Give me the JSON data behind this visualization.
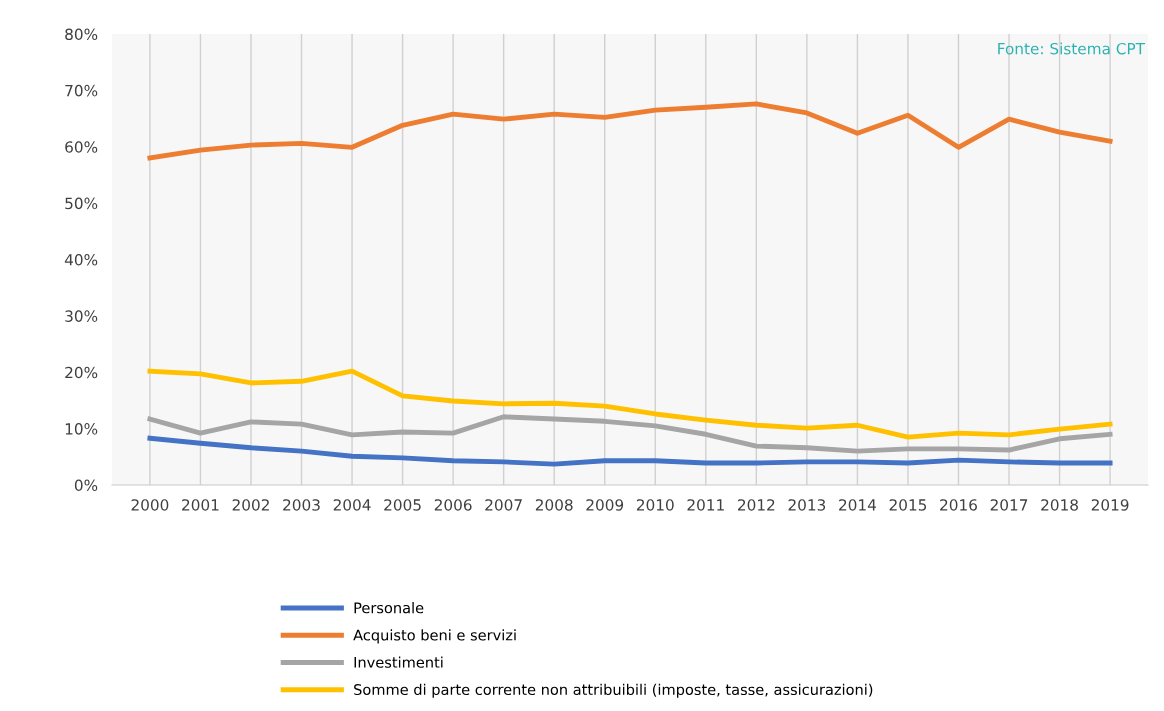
{
  "chart_data": {
    "type": "line",
    "categories": [
      "2000",
      "2001",
      "2002",
      "2003",
      "2004",
      "2005",
      "2006",
      "2007",
      "2008",
      "2009",
      "2010",
      "2011",
      "2012",
      "2013",
      "2014",
      "2015",
      "2016",
      "2017",
      "2018",
      "2019"
    ],
    "series": [
      {
        "name": "Personale",
        "color": "#4472c4",
        "values": [
          8.3,
          7.4,
          6.6,
          6.0,
          5.1,
          4.8,
          4.3,
          4.1,
          3.7,
          4.3,
          4.3,
          3.9,
          3.9,
          4.1,
          4.1,
          3.9,
          4.4,
          4.1,
          3.9,
          3.9
        ]
      },
      {
        "name": "Acquisto beni e servizi",
        "color": "#ed7d31",
        "values": [
          58.0,
          59.4,
          60.3,
          60.6,
          59.9,
          63.8,
          65.8,
          64.9,
          65.8,
          65.2,
          66.5,
          67.0,
          67.6,
          66.0,
          62.4,
          65.6,
          59.9,
          64.9,
          62.6,
          61.0
        ]
      },
      {
        "name": "Investimenti",
        "color": "#a5a5a5",
        "values": [
          11.7,
          9.2,
          11.2,
          10.8,
          8.9,
          9.4,
          9.2,
          12.1,
          11.7,
          11.3,
          10.5,
          9.0,
          6.9,
          6.6,
          6.0,
          6.4,
          6.4,
          6.2,
          8.2,
          9.0
        ]
      },
      {
        "name": "Somme di parte corrente non attribuibili (imposte, tasse, assicurazioni)",
        "color": "#ffc000",
        "values": [
          20.2,
          19.7,
          18.1,
          18.4,
          20.2,
          15.8,
          14.9,
          14.4,
          14.5,
          14.0,
          12.6,
          11.5,
          10.6,
          10.1,
          10.6,
          8.5,
          9.2,
          8.9,
          9.9,
          10.8
        ]
      }
    ],
    "ylim": [
      0,
      80
    ],
    "yticks": [
      {
        "value": 0,
        "label": "0%"
      },
      {
        "value": 10,
        "label": "10%"
      },
      {
        "value": 20,
        "label": "20%"
      },
      {
        "value": 30,
        "label": "30%"
      },
      {
        "value": 40,
        "label": "40%"
      },
      {
        "value": 50,
        "label": "50%"
      },
      {
        "value": 60,
        "label": "60%"
      },
      {
        "value": 70,
        "label": "70%"
      },
      {
        "value": 80,
        "label": "80%"
      }
    ],
    "grid": "x",
    "legend": "bottom",
    "marker": "none",
    "line_style": "solid",
    "annotations": [
      "Fonte: Sistema CPT"
    ]
  }
}
